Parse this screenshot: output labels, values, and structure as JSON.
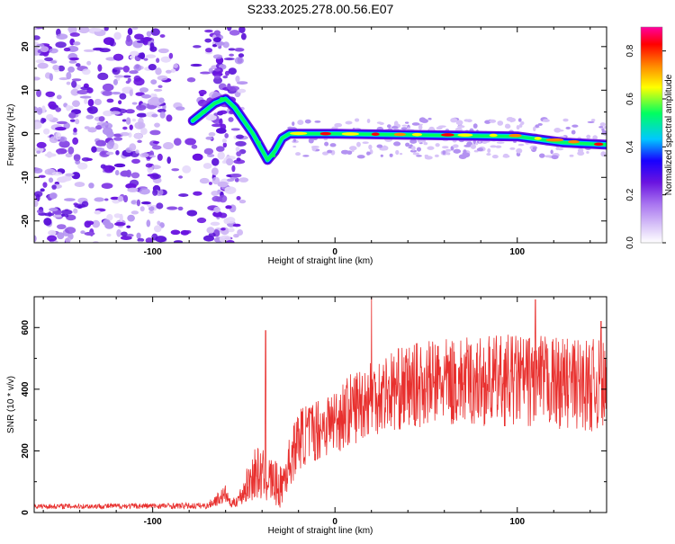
{
  "title": "S233.2025.278.00.56.E07",
  "chart_data": [
    {
      "type": "heatmap",
      "title": "S233.2025.278.00.56.E07",
      "xlabel": "Height of straight line (km)",
      "ylabel": "Frequency (Hz)",
      "xlim": [
        -165,
        149
      ],
      "ylim": [
        -25,
        24.5
      ],
      "xticks": [
        -100,
        0,
        100
      ],
      "xtick_labels": [
        "-100",
        "0",
        "100"
      ],
      "yticks": [
        -20,
        -10,
        0,
        10,
        20
      ],
      "ytick_labels": [
        "-20",
        "-10",
        "0",
        "10",
        "20"
      ],
      "colorbar": {
        "label": "Normalized spectral amplitude",
        "range": [
          0.0,
          0.9
        ],
        "ticks": [
          0.0,
          0.2,
          0.4,
          0.6,
          0.8
        ],
        "tick_labels": [
          "0.0",
          "0.2",
          "0.4",
          "0.6",
          "0.8"
        ],
        "colormap": [
          "#ffffff",
          "#d8c4f8",
          "#a874f0",
          "#6a14e0",
          "#1800ff",
          "#00c8ff",
          "#00ff60",
          "#ffff00",
          "#ff8800",
          "#ff0000",
          "#ff00a0"
        ]
      },
      "signal_trace": [
        {
          "x": -78,
          "y": 3
        },
        {
          "x": -72,
          "y": 5
        },
        {
          "x": -66,
          "y": 7
        },
        {
          "x": -60,
          "y": 8
        },
        {
          "x": -55,
          "y": 6
        },
        {
          "x": -50,
          "y": 3
        },
        {
          "x": -45,
          "y": 0
        },
        {
          "x": -41,
          "y": -3
        },
        {
          "x": -37,
          "y": -6
        },
        {
          "x": -33,
          "y": -4
        },
        {
          "x": -29,
          "y": -1
        },
        {
          "x": -25,
          "y": 0
        },
        {
          "x": 0,
          "y": 0
        },
        {
          "x": 50,
          "y": -0.3
        },
        {
          "x": 100,
          "y": -0.6
        },
        {
          "x": 125,
          "y": -2
        },
        {
          "x": 149,
          "y": -2.5
        }
      ],
      "noise_region_x": [
        -165,
        -58
      ]
    },
    {
      "type": "line",
      "xlabel": "Height of straight line (km)",
      "ylabel": "SNR (10 * v/v)",
      "xlim": [
        -165,
        149
      ],
      "ylim": [
        0,
        700
      ],
      "xticks": [
        -100,
        0,
        100
      ],
      "xtick_labels": [
        "-100",
        "0",
        "100"
      ],
      "yticks": [
        0,
        200,
        400,
        600
      ],
      "ytick_labels": [
        "0",
        "200",
        "400",
        "600"
      ],
      "series": [
        {
          "name": "SNR",
          "color": "#e8302e",
          "envelope": [
            {
              "x": -165,
              "mean": 20,
              "spread": 8
            },
            {
              "x": -70,
              "mean": 22,
              "spread": 10
            },
            {
              "x": -60,
              "mean": 60,
              "spread": 30
            },
            {
              "x": -57,
              "mean": 25,
              "spread": 10
            },
            {
              "x": -52,
              "mean": 50,
              "spread": 30
            },
            {
              "x": -44,
              "mean": 130,
              "spread": 90
            },
            {
              "x": -36,
              "mean": 110,
              "spread": 80
            },
            {
              "x": -30,
              "mean": 80,
              "spread": 70
            },
            {
              "x": -20,
              "mean": 240,
              "spread": 100
            },
            {
              "x": 0,
              "mean": 300,
              "spread": 110
            },
            {
              "x": 20,
              "mean": 380,
              "spread": 130
            },
            {
              "x": 50,
              "mean": 420,
              "spread": 140
            },
            {
              "x": 100,
              "mean": 430,
              "spread": 150
            },
            {
              "x": 149,
              "mean": 410,
              "spread": 150
            }
          ],
          "spikes": [
            {
              "x": 20,
              "y": 700
            },
            {
              "x": -38,
              "y": 590
            },
            {
              "x": 110,
              "y": 690
            },
            {
              "x": 146,
              "y": 620
            }
          ]
        }
      ]
    }
  ]
}
